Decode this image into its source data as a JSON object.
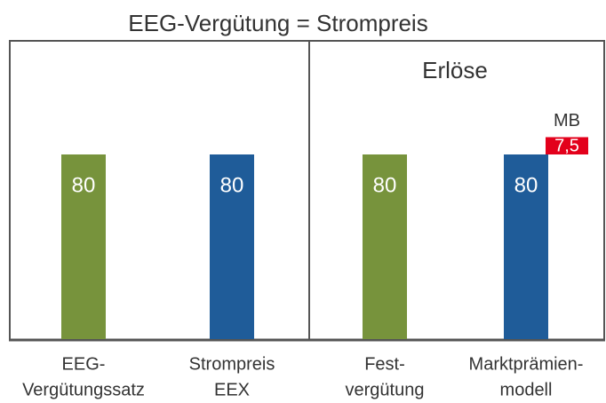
{
  "chart_data": {
    "type": "bar",
    "title": "EEG-Vergütung = Strompreis",
    "panel_title": "Erlöse",
    "categories": [
      [
        "EEG-",
        "Vergütungssatz"
      ],
      [
        "Strompreis",
        "EEX"
      ],
      [
        "Fest-",
        "vergütung"
      ],
      [
        "Marktprämien-",
        "modell"
      ]
    ],
    "series": [
      {
        "values": [
          80,
          80,
          80,
          80
        ],
        "colors": [
          "#77933c",
          "#1f5c99",
          "#77933c",
          "#1f5c99"
        ]
      },
      {
        "name": "MB",
        "color": "#e3001b",
        "values": [
          null,
          null,
          null,
          7.5
        ],
        "value_labels": [
          null,
          null,
          null,
          "7,5"
        ]
      }
    ]
  }
}
